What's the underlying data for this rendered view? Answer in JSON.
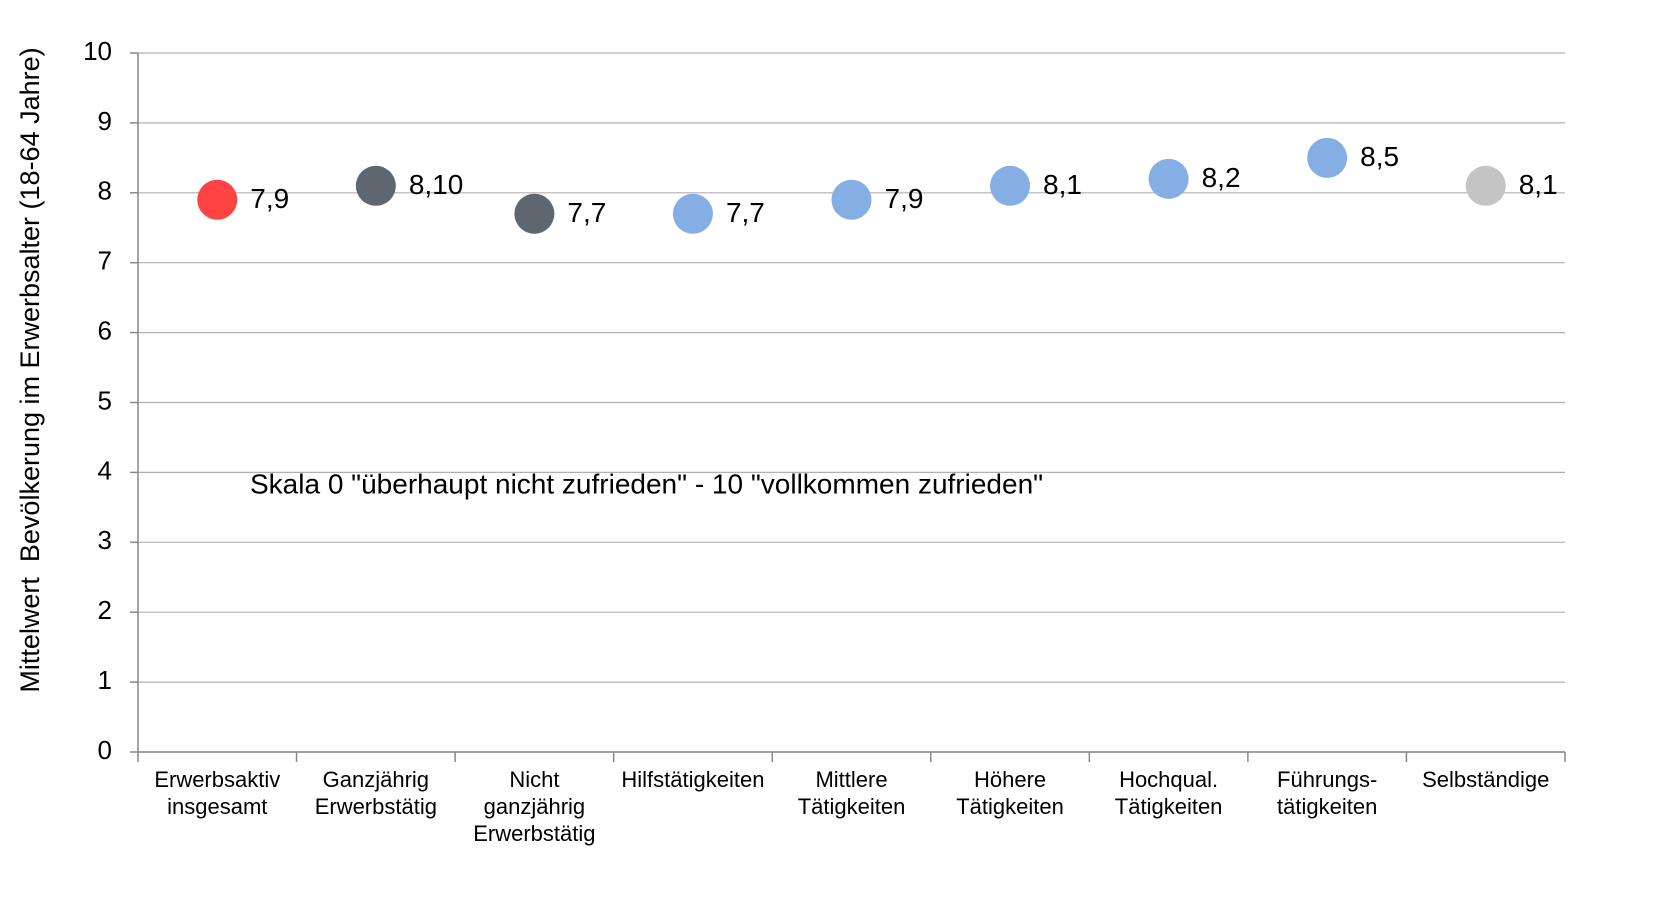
{
  "chart_data": {
    "type": "dot",
    "y_label": "Mittelwert  Bevölkerung im Erwerbsalter (18-64 Jahre)",
    "annotation": "Skala 0 \"überhaupt nicht zufrieden\" - 10 \"vollkommen zufrieden\"",
    "categories": [
      "Erwerbsaktiv\ninsgesamt",
      "Ganzjährig\nErwerbstätig",
      "Nicht\nganzjährig\nErwerbstätig",
      "Hilfstätigkeiten",
      "Mittlere\nTätigkeiten",
      "Höhere\nTätigkeiten",
      "Hochqual.\nTätigkeiten",
      "Führungs-\ntätigkeiten",
      "Selbständige"
    ],
    "values": [
      7.9,
      8.1,
      7.7,
      7.7,
      7.9,
      8.1,
      8.2,
      8.5,
      8.1
    ],
    "value_labels": [
      "7,9",
      "8,10",
      "7,7",
      "7,7",
      "7,9",
      "8,1",
      "8,2",
      "8,5",
      "8,1"
    ],
    "colors": [
      "#ff4343",
      "#5e6670",
      "#5e6670",
      "#84aee4",
      "#84aee4",
      "#84aee4",
      "#84aee4",
      "#84aee4",
      "#c4c4c4"
    ],
    "ylim": [
      0,
      10
    ],
    "yticks": [
      0,
      1,
      2,
      3,
      4,
      5,
      6,
      7,
      8,
      9,
      10
    ],
    "grid": true
  }
}
